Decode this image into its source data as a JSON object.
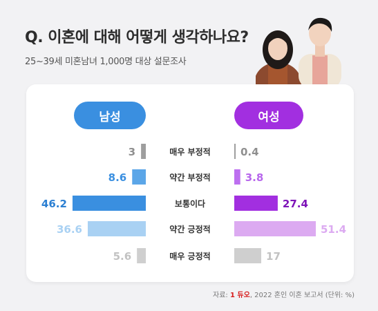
{
  "header": {
    "title": "Q. 이혼에 대해 어떻게 생각하나요?",
    "subtitle": "25~39세 미혼남녀 1,000명 대상 설문조사"
  },
  "legend": {
    "male_label": "남성",
    "female_label": "여성"
  },
  "colors": {
    "male": "#3a8fe0",
    "female": "#a22fe0",
    "gray": "#b5b5b5"
  },
  "chart_data": {
    "type": "bar",
    "categories": [
      "매우 부정적",
      "약간 부정적",
      "보통이다",
      "약간 긍정적",
      "매우 긍정적"
    ],
    "series": [
      {
        "name": "남성",
        "values": [
          3,
          8.6,
          46.2,
          36.6,
          5.6
        ],
        "colors": [
          "#9e9e9e",
          "#5ba6e8",
          "#3a8fe0",
          "#a9d1f3",
          "#cfcfcf"
        ],
        "label_colors": [
          "#8f8f8f",
          "#3a8fe0",
          "#2b7fd2",
          "#a9d1f3",
          "#c2c2c2"
        ]
      },
      {
        "name": "여성",
        "values": [
          0.4,
          3.8,
          27.4,
          51.4,
          17
        ],
        "colors": [
          "#9e9e9e",
          "#bd6ff0",
          "#a22fe0",
          "#dcaaf1",
          "#cfcfcf"
        ],
        "label_colors": [
          "#8f8f8f",
          "#b766ec",
          "#7e14b8",
          "#dcaaf1",
          "#c2c2c2"
        ]
      }
    ],
    "value_labels": {
      "male": [
        "3",
        "8.6",
        "46.2",
        "36.6",
        "5.6"
      ],
      "female": [
        "0.4",
        "3.8",
        "27.4",
        "51.4",
        "17"
      ]
    }
  },
  "footer": {
    "source_prefix": "자료:",
    "brand": "1 듀오",
    "source_suffix": ", 2022 혼인 이혼 보고서 (단위: %)"
  }
}
